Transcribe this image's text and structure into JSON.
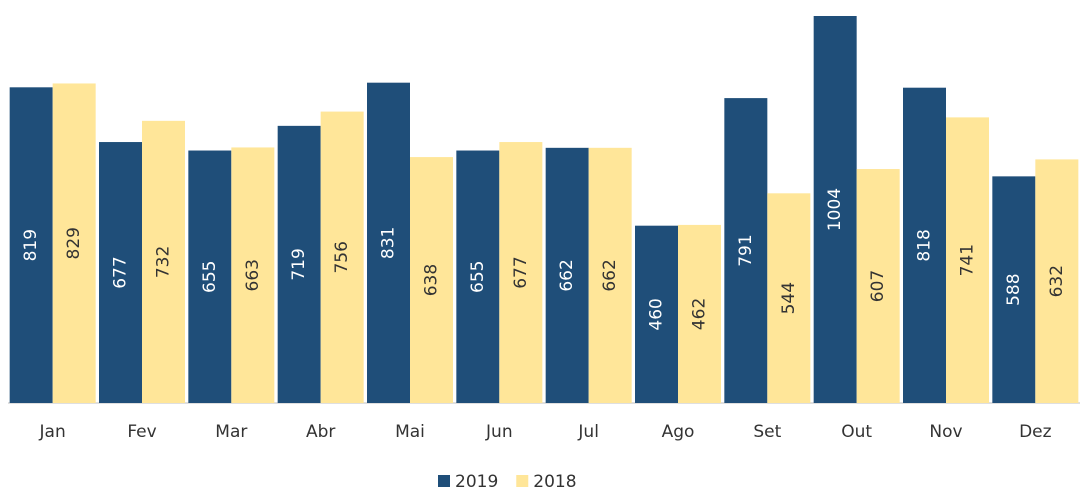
{
  "chart_data": {
    "type": "bar",
    "categories": [
      "Jan",
      "Fev",
      "Mar",
      "Abr",
      "Mai",
      "Jun",
      "Jul",
      "Ago",
      "Set",
      "Out",
      "Nov",
      "Dez"
    ],
    "series": [
      {
        "name": "2019",
        "color": "#1f4e79",
        "values": [
          819,
          677,
          655,
          719,
          831,
          655,
          662,
          460,
          791,
          1004,
          818,
          588
        ]
      },
      {
        "name": "2018",
        "color": "#ffe699",
        "values": [
          829,
          732,
          663,
          756,
          638,
          677,
          662,
          462,
          544,
          607,
          741,
          632
        ]
      }
    ],
    "legend": "bottom"
  }
}
